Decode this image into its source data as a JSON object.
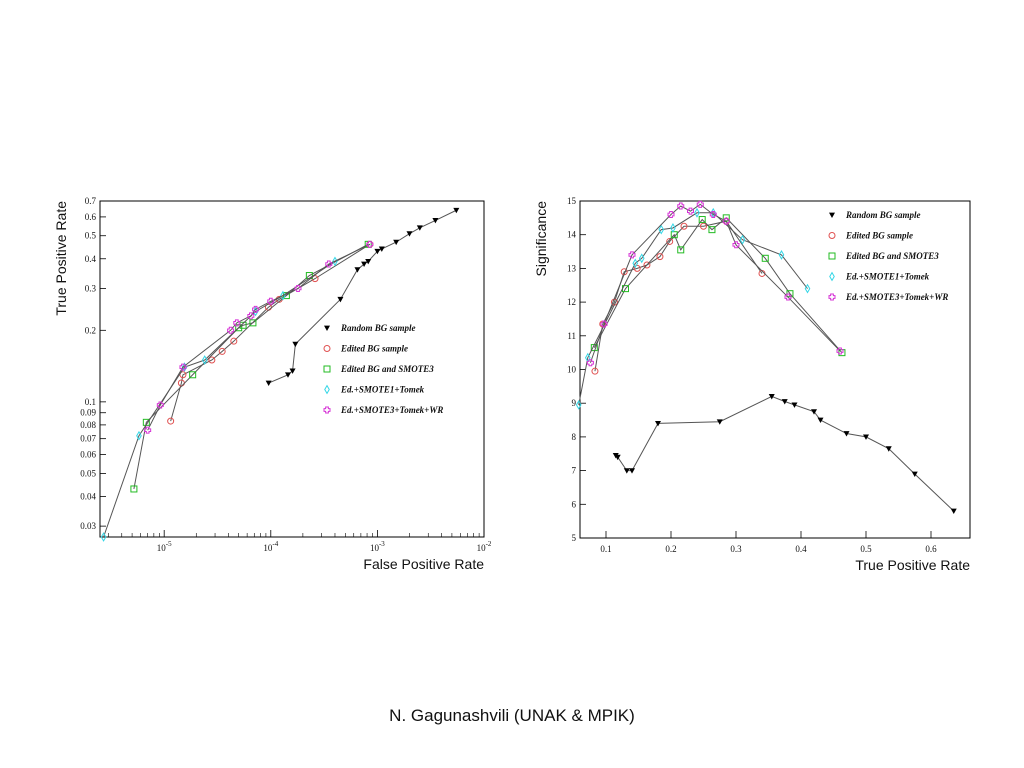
{
  "footer": "N. Gagunashvili (UNAK & MPIK)",
  "colors": {
    "random": "#000000",
    "edited": "#e05050",
    "smote3": "#22bb22",
    "tomek": "#33d6e6",
    "wr": "#d633d6",
    "line": "#555555"
  },
  "chart_data": [
    {
      "type": "line",
      "xscale": "log",
      "yscale": "log",
      "xlabel": "False Positive Rate",
      "ylabel": "True Positive Rate",
      "xlim": [
        2.5e-06,
        0.01
      ],
      "ylim": [
        0.027,
        0.7
      ],
      "xticks": [
        {
          "v": 1e-05,
          "base": "10",
          "exp": "-5"
        },
        {
          "v": 0.0001,
          "base": "10",
          "exp": "-4"
        },
        {
          "v": 0.001,
          "base": "10",
          "exp": "-3"
        },
        {
          "v": 0.01,
          "base": "10",
          "exp": "-2"
        }
      ],
      "yticks": [
        {
          "v": 0.03,
          "label": "0.03"
        },
        {
          "v": 0.04,
          "label": "0.04"
        },
        {
          "v": 0.05,
          "label": "0.05"
        },
        {
          "v": 0.06,
          "label": "0.06"
        },
        {
          "v": 0.07,
          "label": "0.07"
        },
        {
          "v": 0.08,
          "label": "0.08"
        },
        {
          "v": 0.09,
          "label": "0.09"
        },
        {
          "v": 0.1,
          "label": "0.1"
        },
        {
          "v": 0.2,
          "label": "0.2"
        },
        {
          "v": 0.3,
          "label": "0.3"
        },
        {
          "v": 0.4,
          "label": "0.4"
        },
        {
          "v": 0.5,
          "label": "0.5"
        },
        {
          "v": 0.6,
          "label": "0.6"
        },
        {
          "v": 0.7,
          "label": "0.7"
        }
      ],
      "legend_position": "bottom-right",
      "series": [
        {
          "name": "Random BG sample",
          "marker": "triangle",
          "color": "#000000",
          "points": [
            [
              9.55e-05,
              0.12
            ],
            [
              0.000145,
              0.13
            ],
            [
              0.00016,
              0.135
            ],
            [
              0.00017,
              0.175
            ],
            [
              0.00045,
              0.27
            ],
            [
              0.00065,
              0.36
            ],
            [
              0.00075,
              0.38
            ],
            [
              0.00082,
              0.39
            ],
            [
              0.001,
              0.43
            ],
            [
              0.0011,
              0.44
            ],
            [
              0.0015,
              0.47
            ],
            [
              0.002,
              0.51
            ],
            [
              0.0025,
              0.54
            ],
            [
              0.0035,
              0.58
            ],
            [
              0.0055,
              0.64
            ]
          ]
        },
        {
          "name": "Edited BG sample",
          "marker": "circle",
          "color": "#e05050",
          "points": [
            [
              1.15e-05,
              0.083
            ],
            [
              1.45e-05,
              0.12
            ],
            [
              1.5e-05,
              0.13
            ],
            [
              2.8e-05,
              0.15
            ],
            [
              3.5e-05,
              0.163
            ],
            [
              4.5e-05,
              0.18
            ],
            [
              9.5e-05,
              0.25
            ],
            [
              0.00012,
              0.27
            ],
            [
              0.00026,
              0.33
            ],
            [
              0.00085,
              0.46
            ]
          ]
        },
        {
          "name": "Edited BG and SMOTE3",
          "marker": "square",
          "color": "#22bb22",
          "points": [
            [
              5.2e-06,
              0.043
            ],
            [
              6.8e-06,
              0.082
            ],
            [
              1.85e-05,
              0.13
            ],
            [
              5e-05,
              0.205
            ],
            [
              5.5e-05,
              0.21
            ],
            [
              6.8e-05,
              0.215
            ],
            [
              0.00014,
              0.28
            ],
            [
              0.00023,
              0.34
            ],
            [
              0.00082,
              0.46
            ]
          ]
        },
        {
          "name": "Ed.+SMOTE1+Tomek",
          "marker": "diamond",
          "color": "#33d6e6",
          "points": [
            [
              2.7e-06,
              0.027
            ],
            [
              5.8e-06,
              0.072
            ],
            [
              1.55e-05,
              0.14
            ],
            [
              2.4e-05,
              0.15
            ],
            [
              7.2e-05,
              0.24
            ],
            [
              0.00013,
              0.28
            ],
            [
              0.0004,
              0.39
            ]
          ]
        },
        {
          "name": "Ed.+SMOTE3+Tomek+WR",
          "marker": "cross",
          "color": "#d633d6",
          "points": [
            [
              7e-06,
              0.076
            ],
            [
              9.2e-06,
              0.097
            ],
            [
              1.5e-05,
              0.14
            ],
            [
              4.2e-05,
              0.2
            ],
            [
              4.8e-05,
              0.215
            ],
            [
              6.5e-05,
              0.23
            ],
            [
              7.2e-05,
              0.245
            ],
            [
              0.0001,
              0.265
            ],
            [
              0.00018,
              0.3
            ],
            [
              0.00035,
              0.38
            ],
            [
              0.00085,
              0.46
            ]
          ]
        }
      ]
    },
    {
      "type": "line",
      "xscale": "linear",
      "yscale": "linear",
      "xlabel": "True Positive Rate",
      "ylabel": "Significance",
      "xlim": [
        0.06,
        0.66
      ],
      "ylim": [
        5,
        15
      ],
      "xticks": [
        {
          "v": 0.1,
          "label": "0.1"
        },
        {
          "v": 0.2,
          "label": "0.2"
        },
        {
          "v": 0.3,
          "label": "0.3"
        },
        {
          "v": 0.4,
          "label": "0.4"
        },
        {
          "v": 0.5,
          "label": "0.5"
        },
        {
          "v": 0.6,
          "label": "0.6"
        }
      ],
      "yticks": [
        {
          "v": 5,
          "label": "5"
        },
        {
          "v": 6,
          "label": "6"
        },
        {
          "v": 7,
          "label": "7"
        },
        {
          "v": 8,
          "label": "8"
        },
        {
          "v": 9,
          "label": "9"
        },
        {
          "v": 10,
          "label": "10"
        },
        {
          "v": 11,
          "label": "11"
        },
        {
          "v": 12,
          "label": "12"
        },
        {
          "v": 13,
          "label": "13"
        },
        {
          "v": 14,
          "label": "14"
        },
        {
          "v": 15,
          "label": "15"
        }
      ],
      "legend_position": "top-right",
      "series": [
        {
          "name": "Random BG sample",
          "marker": "triangle",
          "color": "#000000",
          "points": [
            [
              0.115,
              7.45
            ],
            [
              0.118,
              7.4
            ],
            [
              0.132,
              7.0
            ],
            [
              0.14,
              7.0
            ],
            [
              0.18,
              8.4
            ],
            [
              0.275,
              8.45
            ],
            [
              0.355,
              9.2
            ],
            [
              0.375,
              9.05
            ],
            [
              0.39,
              8.95
            ],
            [
              0.42,
              8.75
            ],
            [
              0.43,
              8.5
            ],
            [
              0.47,
              8.1
            ],
            [
              0.5,
              8.0
            ],
            [
              0.535,
              7.65
            ],
            [
              0.575,
              6.9
            ],
            [
              0.635,
              5.8
            ]
          ]
        },
        {
          "name": "Edited BG sample",
          "marker": "circle",
          "color": "#e05050",
          "points": [
            [
              0.083,
              9.95
            ],
            [
              0.095,
              11.35
            ],
            [
              0.113,
              12.0
            ],
            [
              0.128,
              12.9
            ],
            [
              0.148,
              13.0
            ],
            [
              0.163,
              13.1
            ],
            [
              0.183,
              13.35
            ],
            [
              0.198,
              13.8
            ],
            [
              0.22,
              14.25
            ],
            [
              0.25,
              14.25
            ],
            [
              0.285,
              14.4
            ],
            [
              0.34,
              12.85
            ]
          ]
        },
        {
          "name": "Edited BG and SMOTE3",
          "marker": "square",
          "color": "#22bb22",
          "points": [
            [
              0.082,
              10.65
            ],
            [
              0.13,
              12.4
            ],
            [
              0.205,
              14.0
            ],
            [
              0.215,
              13.55
            ],
            [
              0.248,
              14.45
            ],
            [
              0.263,
              14.15
            ],
            [
              0.285,
              14.5
            ],
            [
              0.345,
              13.3
            ],
            [
              0.383,
              12.25
            ],
            [
              0.463,
              10.5
            ]
          ]
        },
        {
          "name": "Ed.+SMOTE1+Tomek",
          "marker": "diamond",
          "color": "#33d6e6",
          "points": [
            [
              0.058,
              8.95
            ],
            [
              0.072,
              10.35
            ],
            [
              0.145,
              13.15
            ],
            [
              0.155,
              13.3
            ],
            [
              0.185,
              14.15
            ],
            [
              0.203,
              14.2
            ],
            [
              0.24,
              14.65
            ],
            [
              0.265,
              14.65
            ],
            [
              0.31,
              13.85
            ],
            [
              0.37,
              13.4
            ],
            [
              0.41,
              12.4
            ]
          ]
        },
        {
          "name": "Ed.+SMOTE3+Tomek+WR",
          "marker": "cross",
          "color": "#d633d6",
          "points": [
            [
              0.076,
              10.2
            ],
            [
              0.097,
              11.35
            ],
            [
              0.14,
              13.4
            ],
            [
              0.2,
              14.6
            ],
            [
              0.215,
              14.85
            ],
            [
              0.23,
              14.7
            ],
            [
              0.245,
              14.9
            ],
            [
              0.265,
              14.6
            ],
            [
              0.285,
              14.4
            ],
            [
              0.3,
              13.7
            ],
            [
              0.38,
              12.15
            ],
            [
              0.46,
              10.55
            ]
          ]
        }
      ]
    }
  ]
}
